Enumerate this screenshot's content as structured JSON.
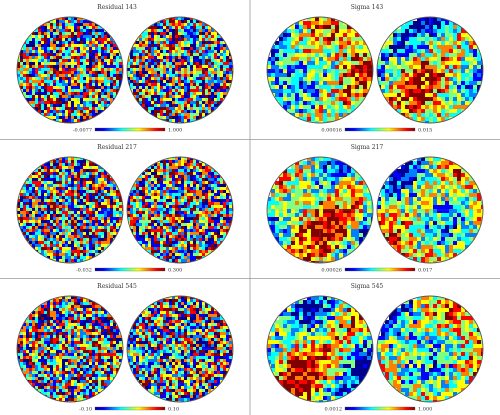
{
  "figure": {
    "panels": [
      {
        "title": "Residual 143",
        "kind": "residual",
        "colorbar": {
          "min_label": "-0.0077",
          "max_label": "1.000"
        }
      },
      {
        "title": "Sigma 143",
        "kind": "sigma",
        "colorbar": {
          "min_label": "0.00016",
          "max_label": "0.015"
        }
      },
      {
        "title": "Residual 217",
        "kind": "residual",
        "colorbar": {
          "min_label": "-0.032",
          "max_label": "0.300"
        }
      },
      {
        "title": "Sigma 217",
        "kind": "sigma",
        "colorbar": {
          "min_label": "0.00026",
          "max_label": "0.017"
        }
      },
      {
        "title": "Residual 545",
        "kind": "residual",
        "colorbar": {
          "min_label": "-0.10",
          "max_label": "0.10"
        }
      },
      {
        "title": "Sigma 545",
        "kind": "sigma",
        "colorbar": {
          "min_label": "0.0012",
          "max_label": "1.000"
        }
      }
    ],
    "colors": {
      "divider": "#999999",
      "circle_outline": "#555555",
      "colormap": [
        "#00008f",
        "#0000ff",
        "#0080ff",
        "#00ffff",
        "#80ff80",
        "#ffff00",
        "#ff8000",
        "#ff0000",
        "#800000"
      ]
    }
  }
}
